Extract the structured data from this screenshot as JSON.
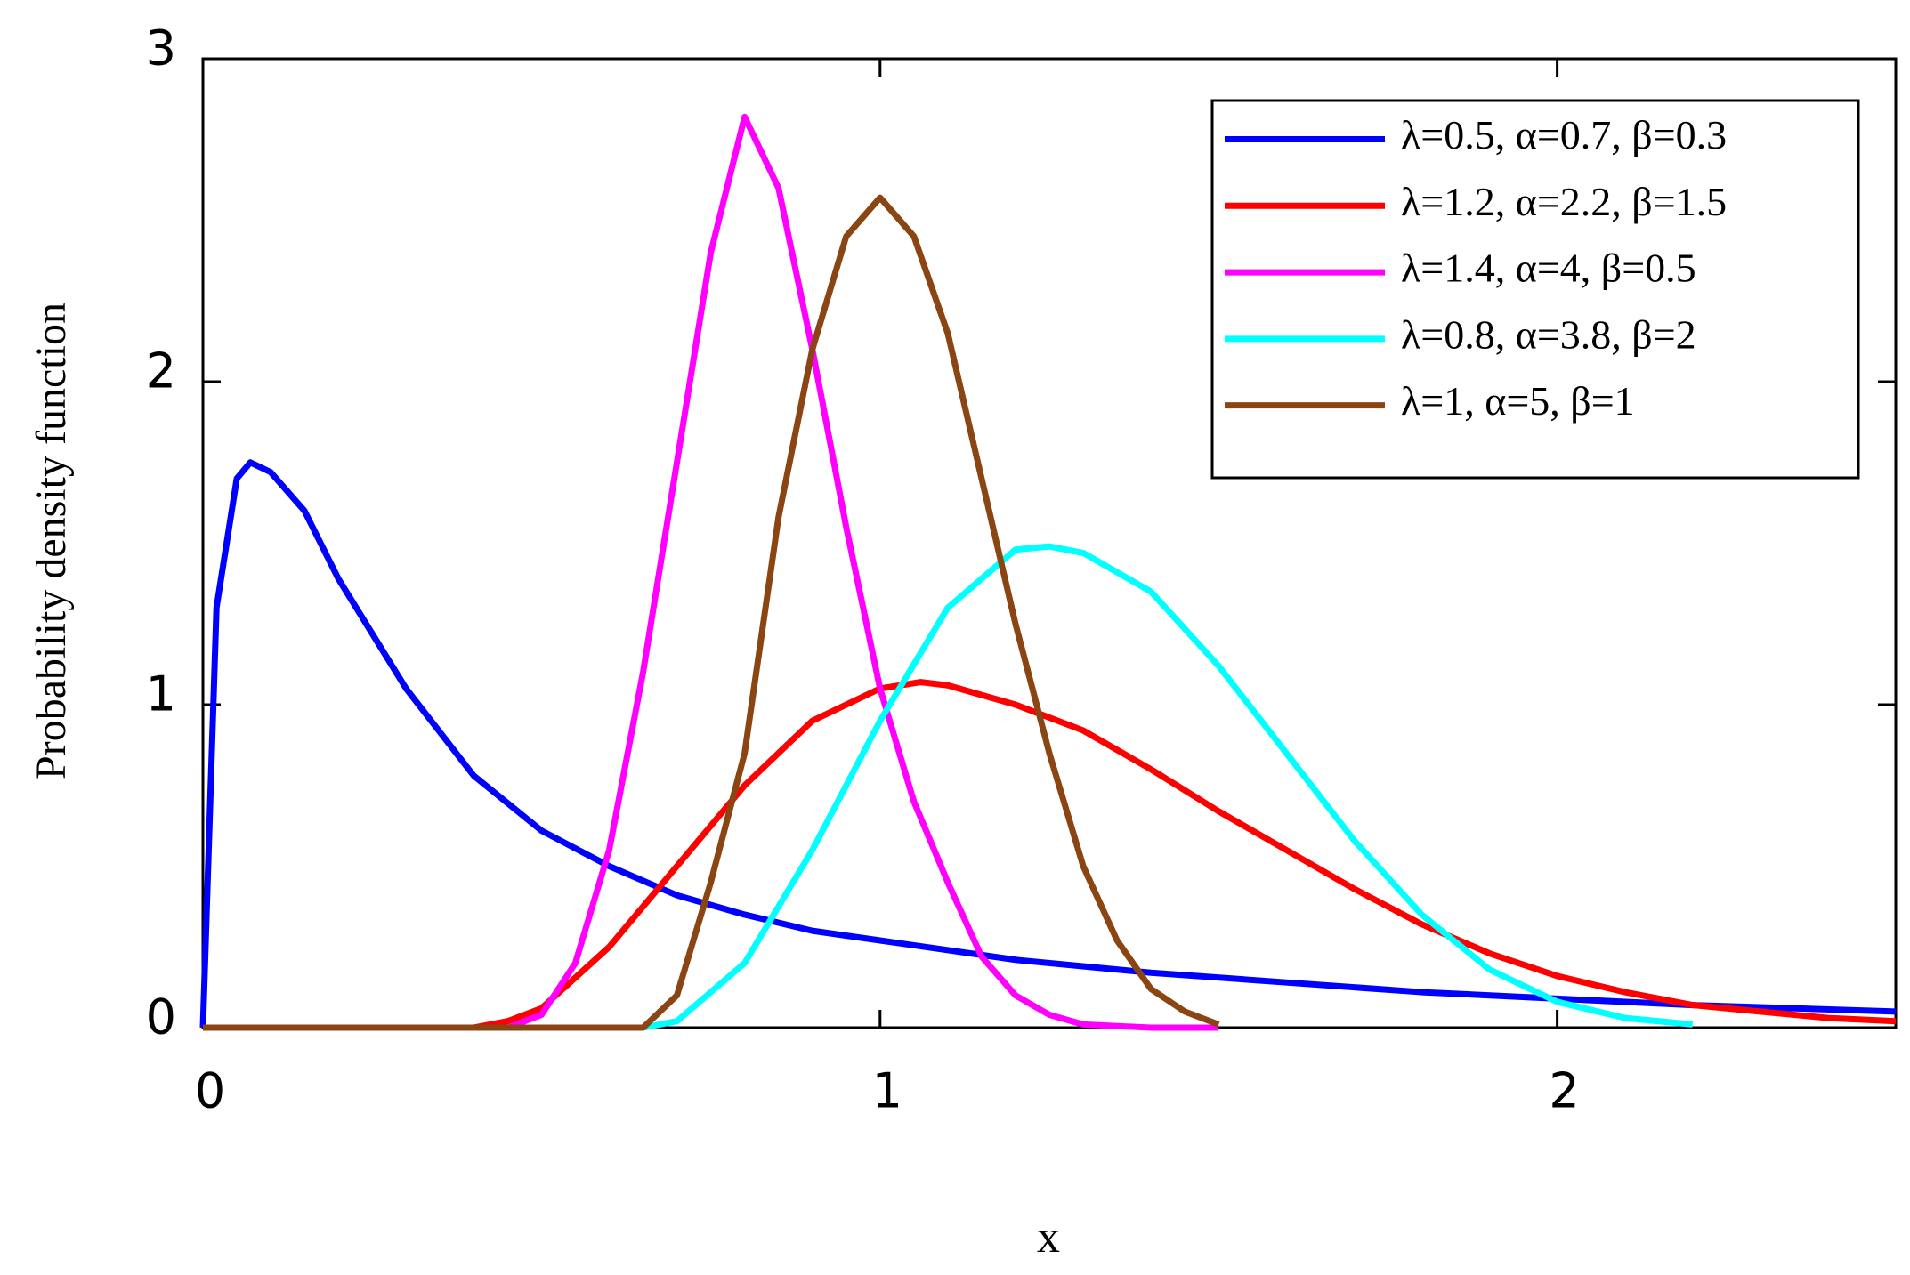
{
  "chart_data": {
    "type": "line",
    "xlabel": "x",
    "ylabel": "Probability density function",
    "xlim": [
      0,
      2.5
    ],
    "ylim": [
      0,
      3
    ],
    "xticks": [
      0,
      1,
      2
    ],
    "yticks": [
      0,
      1,
      2,
      3
    ],
    "grid": false,
    "legend": "upper right",
    "series": [
      {
        "name": "λ=0.5, α=0.7, β=0.3",
        "color": "#0000ff",
        "x": [
          0,
          0.02,
          0.05,
          0.07,
          0.1,
          0.15,
          0.2,
          0.3,
          0.4,
          0.5,
          0.6,
          0.7,
          0.8,
          0.9,
          1.0,
          1.2,
          1.4,
          1.6,
          1.8,
          2.0,
          2.2,
          2.5
        ],
        "values": [
          0,
          1.3,
          1.7,
          1.75,
          1.72,
          1.6,
          1.39,
          1.05,
          0.78,
          0.61,
          0.5,
          0.41,
          0.35,
          0.3,
          0.27,
          0.21,
          0.17,
          0.14,
          0.11,
          0.09,
          0.07,
          0.05
        ]
      },
      {
        "name": "λ=1.2, α=2.2, β=1.5",
        "color": "#ff0000",
        "x": [
          0,
          0.4,
          0.45,
          0.5,
          0.6,
          0.7,
          0.8,
          0.9,
          1.0,
          1.06,
          1.1,
          1.2,
          1.3,
          1.4,
          1.5,
          1.6,
          1.7,
          1.8,
          1.9,
          2.0,
          2.1,
          2.2,
          2.3,
          2.4,
          2.5
        ],
        "values": [
          0,
          0,
          0.02,
          0.06,
          0.25,
          0.5,
          0.75,
          0.95,
          1.05,
          1.07,
          1.06,
          1.0,
          0.92,
          0.8,
          0.67,
          0.55,
          0.43,
          0.32,
          0.23,
          0.16,
          0.11,
          0.07,
          0.05,
          0.03,
          0.02
        ]
      },
      {
        "name": "λ=1.4, α=4, β=0.5",
        "color": "#ff00ff",
        "x": [
          0,
          0.45,
          0.5,
          0.55,
          0.6,
          0.65,
          0.7,
          0.75,
          0.8,
          0.85,
          0.9,
          0.95,
          1.0,
          1.05,
          1.1,
          1.15,
          1.2,
          1.25,
          1.3,
          1.4,
          1.5
        ],
        "values": [
          0,
          0,
          0.04,
          0.2,
          0.55,
          1.1,
          1.75,
          2.4,
          2.82,
          2.6,
          2.1,
          1.55,
          1.05,
          0.7,
          0.45,
          0.22,
          0.1,
          0.04,
          0.01,
          0,
          0
        ]
      },
      {
        "name": "λ=0.8, α=3.8, β=2",
        "color": "#00ffff",
        "x": [
          0.65,
          0.7,
          0.8,
          0.9,
          1.0,
          1.1,
          1.2,
          1.25,
          1.3,
          1.4,
          1.5,
          1.6,
          1.7,
          1.8,
          1.9,
          2.0,
          2.1,
          2.2
        ],
        "values": [
          0,
          0.02,
          0.2,
          0.55,
          0.95,
          1.3,
          1.48,
          1.49,
          1.47,
          1.35,
          1.12,
          0.85,
          0.58,
          0.35,
          0.18,
          0.08,
          0.03,
          0.01
        ]
      },
      {
        "name": "λ=1, α=5, β=1",
        "color": "#8b4513",
        "x": [
          0,
          0.65,
          0.7,
          0.75,
          0.8,
          0.85,
          0.9,
          0.95,
          1.0,
          1.05,
          1.1,
          1.15,
          1.2,
          1.25,
          1.3,
          1.35,
          1.4,
          1.45,
          1.5
        ],
        "values": [
          0,
          0,
          0.1,
          0.45,
          0.85,
          1.58,
          2.1,
          2.45,
          2.57,
          2.45,
          2.15,
          1.7,
          1.25,
          0.85,
          0.5,
          0.27,
          0.12,
          0.05,
          0.01
        ]
      }
    ]
  }
}
